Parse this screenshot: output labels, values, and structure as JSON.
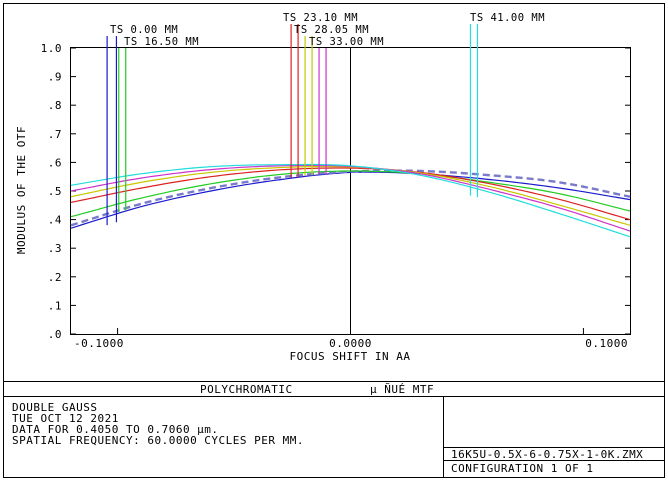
{
  "chart_data": {
    "type": "line",
    "ylabel": "MODULUS OF THE OTF",
    "xlabel": "FOCUS SHIFT IN  AA",
    "xlim": [
      -0.12,
      0.12
    ],
    "ylim": [
      0.0,
      1.0
    ],
    "x_ticks": [
      "-0.1000",
      "0.0000",
      "0.1000"
    ],
    "x_tick_values": [
      -0.1,
      0.0,
      0.1
    ],
    "y_ticks": [
      ".0",
      ".1",
      ".2",
      ".3",
      ".4",
      ".5",
      ".6",
      ".7",
      ".8",
      ".9",
      "1.0"
    ],
    "y_tick_values": [
      0.0,
      0.1,
      0.2,
      0.3,
      0.4,
      0.5,
      0.6,
      0.7,
      0.8,
      0.9,
      1.0
    ],
    "legend_labels": [
      "TS 0.00 MM",
      "TS 16.50 MM",
      "TS 23.10 MM",
      "TS 28.05 MM",
      "TS 33.00 MM",
      "TS 41.00 MM"
    ],
    "series": [
      {
        "name": "TS 0.00 MM",
        "color": "#1a1acc",
        "dashed": false,
        "x": [
          -0.12,
          -0.09,
          -0.06,
          -0.03,
          0.0,
          0.03,
          0.06,
          0.09,
          0.12
        ],
        "y": [
          0.37,
          0.445,
          0.5,
          0.54,
          0.565,
          0.56,
          0.54,
          0.51,
          0.47
        ]
      },
      {
        "name": "TS 0.00 MM",
        "color": "#7a7acc",
        "dashed": true,
        "x": [
          -0.12,
          -0.09,
          -0.06,
          -0.03,
          0.0,
          0.03,
          0.06,
          0.09,
          0.12
        ],
        "y": [
          0.38,
          0.455,
          0.51,
          0.548,
          0.568,
          0.57,
          0.555,
          0.53,
          0.48
        ]
      },
      {
        "name": "TS 16.50 MM",
        "color": "#22cc22",
        "dashed": false,
        "x": [
          -0.12,
          -0.09,
          -0.06,
          -0.03,
          0.0,
          0.03,
          0.06,
          0.09,
          0.12
        ],
        "y": [
          0.41,
          0.475,
          0.525,
          0.558,
          0.57,
          0.56,
          0.53,
          0.49,
          0.43
        ]
      },
      {
        "name": "TS 23.10 MM",
        "color": "#dd2222",
        "dashed": false,
        "x": [
          -0.12,
          -0.09,
          -0.06,
          -0.03,
          0.0,
          0.03,
          0.06,
          0.09,
          0.12
        ],
        "y": [
          0.46,
          0.51,
          0.55,
          0.574,
          0.58,
          0.565,
          0.525,
          0.47,
          0.4
        ]
      },
      {
        "name": "TS 28.05 MM",
        "color": "#c8c800",
        "dashed": false,
        "x": [
          -0.12,
          -0.09,
          -0.06,
          -0.03,
          0.0,
          0.03,
          0.06,
          0.09,
          0.12
        ],
        "y": [
          0.48,
          0.53,
          0.565,
          0.582,
          0.584,
          0.563,
          0.515,
          0.45,
          0.38
        ]
      },
      {
        "name": "TS 33.00 MM",
        "color": "#cc33cc",
        "dashed": false,
        "x": [
          -0.12,
          -0.09,
          -0.06,
          -0.03,
          0.0,
          0.03,
          0.06,
          0.09,
          0.12
        ],
        "y": [
          0.5,
          0.545,
          0.575,
          0.588,
          0.586,
          0.56,
          0.505,
          0.44,
          0.36
        ]
      },
      {
        "name": "TS 41.00 MM",
        "color": "#22dddd",
        "dashed": false,
        "x": [
          -0.12,
          -0.09,
          -0.06,
          -0.03,
          0.0,
          0.03,
          0.06,
          0.09,
          0.12
        ],
        "y": [
          0.52,
          0.56,
          0.585,
          0.592,
          0.588,
          0.555,
          0.495,
          0.42,
          0.34
        ]
      }
    ],
    "ts_markers": [
      {
        "label": "TS 0.00 MM",
        "color": "#1a1acc",
        "x": [
          -0.1045,
          -0.1005
        ]
      },
      {
        "label": "TS 16.50 MM",
        "color": "#22cc22",
        "x": [
          -0.0995,
          -0.0965
        ]
      },
      {
        "label": "TS 23.10 MM",
        "color": "#dd2222",
        "x": [
          -0.0255,
          -0.0225
        ]
      },
      {
        "label": "TS 28.05 MM",
        "color": "#c8c800",
        "x": [
          -0.0195,
          -0.0165
        ]
      },
      {
        "label": "TS 33.00 MM",
        "color": "#cc33cc",
        "x": [
          -0.0135,
          -0.0105
        ]
      },
      {
        "label": "TS 41.00 MM",
        "color": "#22dddd",
        "x": [
          0.0515,
          0.0545
        ]
      }
    ],
    "grid": false
  },
  "footer": {
    "title_left": "POLYCHROMATIC",
    "title_right": "µ ÑUÉ MTF",
    "info_lines": [
      "DOUBLE GAUSS",
      "TUE OCT 12 2021",
      "DATA FOR 0.4050 TO 0.7060 µm.",
      "SPATIAL FREQUENCY: 60.0000 CYCLES PER MM."
    ],
    "file_name": "16K5U-0.5X-6-0.75X-1-0K.ZMX",
    "configuration": "CONFIGURATION  1  OF  1"
  }
}
